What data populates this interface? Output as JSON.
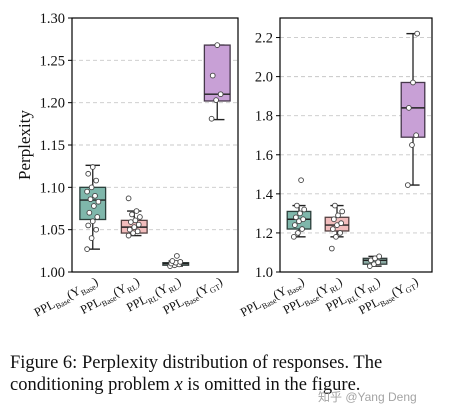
{
  "chart_data": [
    {
      "type": "box",
      "ylabel": "Perplexity",
      "ylim": [
        1.0,
        1.3
      ],
      "yticks": [
        "1.00",
        "1.05",
        "1.10",
        "1.15",
        "1.20",
        "1.25",
        "1.30"
      ],
      "grid": "horizontal dashed",
      "categories": [
        {
          "base": "PPL",
          "sub": "Base",
          "arg": "Y",
          "argsub": "Base"
        },
        {
          "base": "PPL",
          "sub": "Base",
          "arg": "Y",
          "argsub": "RL"
        },
        {
          "base": "PPL",
          "sub": "RL",
          "arg": "Y",
          "argsub": "RL"
        },
        {
          "base": "PPL",
          "sub": "Base",
          "arg": "Y",
          "argsub": "GT"
        }
      ],
      "boxes": [
        {
          "color": "#7fb7ab",
          "whisker_low": 1.027,
          "q1": 1.062,
          "median": 1.085,
          "q3": 1.1,
          "whisker_high": 1.126,
          "points": [
            1.027,
            1.04,
            1.05,
            1.055,
            1.06,
            1.065,
            1.07,
            1.078,
            1.083,
            1.086,
            1.09,
            1.095,
            1.1,
            1.108,
            1.116,
            1.124
          ]
        },
        {
          "color": "#f2bdbd",
          "whisker_low": 1.043,
          "q1": 1.046,
          "median": 1.053,
          "q3": 1.061,
          "whisker_high": 1.072,
          "points": [
            1.043,
            1.046,
            1.048,
            1.05,
            1.053,
            1.056,
            1.059,
            1.061,
            1.065,
            1.068,
            1.072,
            1.087
          ]
        },
        {
          "color": "#8aaaa3",
          "whisker_low": 1.007,
          "q1": 1.008,
          "median": 1.01,
          "q3": 1.011,
          "whisker_high": 1.013,
          "points": [
            1.007,
            1.008,
            1.009,
            1.01,
            1.011,
            1.012,
            1.013,
            1.019
          ]
        },
        {
          "color": "#c8a0d6",
          "whisker_low": 1.18,
          "q1": 1.202,
          "median": 1.21,
          "q3": 1.268,
          "whisker_high": 1.268,
          "points": [
            1.181,
            1.203,
            1.21,
            1.232,
            1.268
          ]
        }
      ]
    },
    {
      "type": "box",
      "ylabel": "",
      "ylim": [
        1.0,
        2.3
      ],
      "yticks": [
        "1.0",
        "1.2",
        "1.4",
        "1.6",
        "1.8",
        "2.0",
        "2.2"
      ],
      "grid": "horizontal dashed",
      "categories": [
        {
          "base": "PPL",
          "sub": "Base",
          "arg": "Y",
          "argsub": "Base"
        },
        {
          "base": "PPL",
          "sub": "Base",
          "arg": "Y",
          "argsub": "RL"
        },
        {
          "base": "PPL",
          "sub": "RL",
          "arg": "Y",
          "argsub": "RL"
        },
        {
          "base": "PPL",
          "sub": "Base",
          "arg": "Y",
          "argsub": "GT"
        }
      ],
      "boxes": [
        {
          "color": "#7fb7ab",
          "whisker_low": 1.18,
          "q1": 1.22,
          "median": 1.27,
          "q3": 1.31,
          "whisker_high": 1.34,
          "points": [
            1.18,
            1.2,
            1.22,
            1.24,
            1.26,
            1.27,
            1.28,
            1.3,
            1.32,
            1.34,
            1.47
          ]
        },
        {
          "color": "#f2bdbd",
          "whisker_low": 1.18,
          "q1": 1.21,
          "median": 1.24,
          "q3": 1.28,
          "whisker_high": 1.34,
          "points": [
            1.12,
            1.18,
            1.2,
            1.22,
            1.24,
            1.25,
            1.27,
            1.29,
            1.31,
            1.34
          ]
        },
        {
          "color": "#8aaaa3",
          "whisker_low": 1.03,
          "q1": 1.04,
          "median": 1.06,
          "q3": 1.07,
          "whisker_high": 1.08,
          "points": [
            1.03,
            1.04,
            1.05,
            1.06,
            1.07,
            1.08
          ]
        },
        {
          "color": "#c8a0d6",
          "whisker_low": 1.445,
          "q1": 1.69,
          "median": 1.84,
          "q3": 1.97,
          "whisker_high": 2.22,
          "points": [
            1.445,
            1.65,
            1.7,
            1.84,
            1.97,
            2.22
          ]
        }
      ]
    }
  ],
  "caption": {
    "line1": "Figure 6: Perplexity distribution of responses. The",
    "line2a": "conditioning problem ",
    "line2var": "x",
    "line2b": " is omitted in the figure."
  },
  "watermark": "知乎 @Yang Deng"
}
